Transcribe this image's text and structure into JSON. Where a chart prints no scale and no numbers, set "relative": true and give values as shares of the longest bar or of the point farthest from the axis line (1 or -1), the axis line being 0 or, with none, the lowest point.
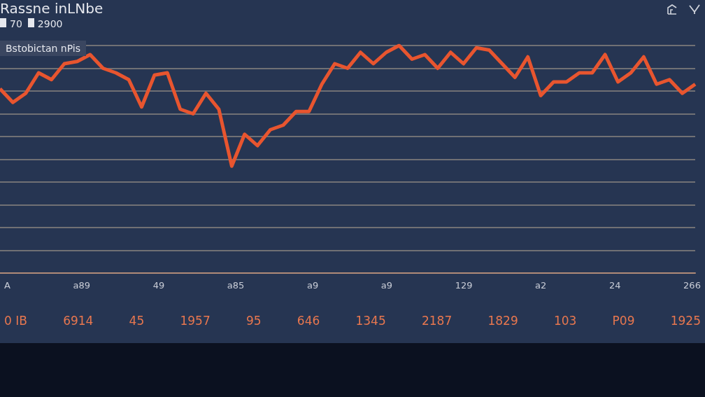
{
  "chart_data": {
    "type": "line",
    "title": "Rassne inLNbe",
    "subtitle": "Bstobictan nPis",
    "relative": true,
    "grid": "y",
    "marker": "none",
    "line_style": "solid",
    "categories": [
      null,
      null,
      null,
      null,
      null,
      null,
      null,
      null,
      null,
      null,
      null,
      null,
      null,
      null,
      null,
      null,
      null,
      null,
      null,
      null,
      null,
      null,
      null,
      null,
      null,
      null,
      null,
      null,
      null,
      null,
      null,
      null,
      null,
      null,
      null,
      null,
      null,
      null,
      null,
      null,
      null,
      null,
      null,
      null,
      null,
      null,
      null,
      null,
      null,
      null,
      null,
      null,
      null,
      null,
      null
    ],
    "series": [
      {
        "color": "#e8552f",
        "values": [
          0.81,
          0.75,
          0.79,
          0.88,
          0.85,
          0.92,
          0.93,
          0.96,
          0.9,
          0.88,
          0.85,
          0.73,
          0.87,
          0.88,
          0.72,
          0.7,
          0.79,
          0.72,
          0.47,
          0.61,
          0.56,
          0.63,
          0.65,
          0.71,
          0.71,
          0.83,
          0.92,
          0.9,
          0.97,
          0.92,
          0.97,
          1,
          0.94,
          0.96,
          0.9,
          0.97,
          0.92,
          0.99,
          0.98,
          0.92,
          0.86,
          0.95,
          0.78,
          0.84,
          0.84,
          0.88,
          0.88,
          0.96,
          0.84,
          0.88,
          0.95,
          0.83,
          0.85,
          0.79,
          0.83
        ]
      }
    ],
    "annotations": [
      "70",
      "2900",
      "A",
      "a89",
      "49",
      "a85",
      "a9",
      "a9",
      "129",
      "a2",
      "24",
      "266",
      "0 IB",
      "6914",
      "45",
      "1957",
      "95",
      "646",
      "1345",
      "2187",
      "1829",
      "103",
      "P09",
      "1925"
    ]
  }
}
